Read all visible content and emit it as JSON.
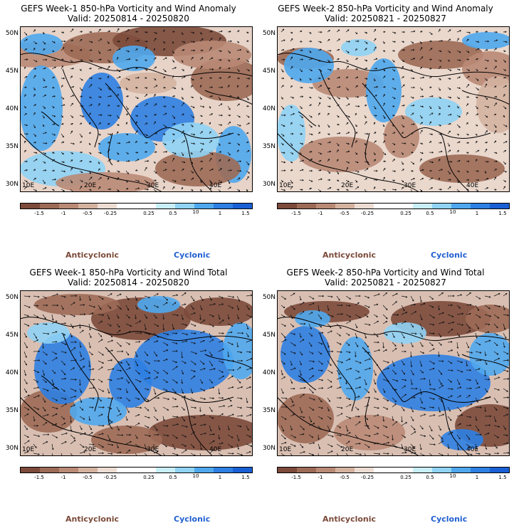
{
  "panels": [
    {
      "title_line1": "GEFS Week-1 850-hPa Vorticity and Wind Anomaly",
      "title_line2": "Valid: 20250814 - 20250820",
      "pattern": "anomaly1"
    },
    {
      "title_line1": "GEFS Week-2 850-hPa Vorticity and Wind Anomaly",
      "title_line2": "Valid: 20250821 - 20250827",
      "pattern": "anomaly2"
    },
    {
      "title_line1": "GEFS Week-1 850-hPa Vorticity and Wind Total",
      "title_line2": "Valid: 20250814 - 20250820",
      "pattern": "total1"
    },
    {
      "title_line1": "GEFS Week-2 850-hPa Vorticity and Wind Total",
      "title_line2": "Valid: 20250821 - 20250827",
      "pattern": "total2"
    }
  ],
  "lat_labels": [
    "50N",
    "45N",
    "40N",
    "35N",
    "30N"
  ],
  "lon_labels": [
    "10E",
    "20E",
    "30E",
    "40E"
  ],
  "colorbar": {
    "labels": [
      "-1.5",
      "-1",
      "-0.5",
      "-0.25",
      "0.25",
      "0.5",
      "1",
      "1.5"
    ],
    "unit_label": "10",
    "colors": [
      "#7b4a3a",
      "#9c6a55",
      "#b98a75",
      "#d4b2a0",
      "#ecdcd2",
      "#ffffff",
      "#ffffff",
      "#c8eefa",
      "#8fd3f5",
      "#4fa8ee",
      "#2e7fe2",
      "#1a5fd4"
    ]
  },
  "legend": {
    "anticyclonic": "Anticyclonic",
    "cyclonic": "Cyclonic"
  }
}
